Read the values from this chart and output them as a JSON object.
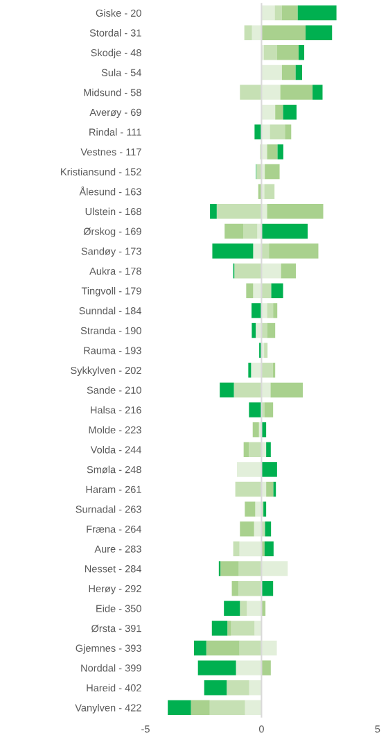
{
  "chart_data": {
    "type": "bar",
    "orientation": "horizontal",
    "stacked": true,
    "categories": [
      "Giske - 20",
      "Stordal - 31",
      "Skodje - 48",
      "Sula - 54",
      "Midsund - 58",
      "Averøy - 69",
      "Rindal - 111",
      "Vestnes - 117",
      "Kristiansund - 152",
      "Ålesund - 163",
      "Ulstein - 168",
      "Ørskog - 169",
      "Sandøy - 173",
      "Aukra - 178",
      "Tingvoll - 179",
      "Sunndal - 184",
      "Stranda - 190",
      "Rauma - 193",
      "Sykkylven - 202",
      "Sande - 210",
      "Halsa - 216",
      "Molde - 223",
      "Volda - 244",
      "Smøla - 248",
      "Haram - 261",
      "Surnadal - 263",
      "Fræna - 264",
      "Aure - 283",
      "Nesset - 284",
      "Herøy - 292",
      "Eide - 350",
      "Ørsta - 391",
      "Gjemnes - 393",
      "Norddal - 399",
      "Hareid - 402",
      "Vanylven - 422"
    ],
    "series": [
      {
        "color": "#e2efda",
        "values": [
          0.57,
          -0.41,
          0.1,
          0.88,
          0.81,
          0.59,
          0.36,
          0.24,
          0.14,
          0.12,
          0.24,
          -0.18,
          -0.36,
          0.84,
          -0.36,
          0.24,
          -0.25,
          0.11,
          -0.45,
          0.39,
          0,
          -0.11,
          0.2,
          -1.06,
          0.2,
          -0.27,
          -0.32,
          -0.95,
          1.13,
          null,
          -0.63,
          -0.3,
          0.66,
          -1.1,
          -0.53,
          -0.71
        ]
      },
      {
        "color": "#c6e0b4",
        "values": [
          0.3,
          -0.33,
          0.56,
          0,
          -0.93,
          null,
          0.65,
          -0.06,
          -0.22,
          0.44,
          -1.93,
          -0.61,
          0.32,
          -1.17,
          0.42,
          0.26,
          0.24,
          0.15,
          0.49,
          -1.19,
          0.12,
          null,
          -0.54,
          0,
          -1.13,
          0.08,
          0.15,
          -0.27,
          -0.98,
          -0.99,
          -0.3,
          -1.01,
          -0.95,
          0,
          -0.97,
          -1.52
        ]
      },
      {
        "color": "#a9d18e",
        "values": [
          0.69,
          1.9,
          0.94,
          0.59,
          1.39,
          0.34,
          0.27,
          0.45,
          0.64,
          -0.14,
          2.42,
          -0.8,
          2.13,
          0.64,
          -0.3,
          0.18,
          0.35,
          0,
          0.1,
          1.39,
          0.38,
          -0.27,
          -0.23,
          0,
          0.31,
          -0.45,
          -0.61,
          0.13,
          -0.79,
          -0.29,
          0.17,
          -0.16,
          -1.43,
          0.4,
          0,
          -0.81
        ]
      },
      {
        "color": "#00b050",
        "values": [
          1.67,
          1.14,
          0.24,
          0.28,
          0.43,
          0.58,
          -0.3,
          0.25,
          -0.02,
          0,
          -0.29,
          1.99,
          -1.76,
          -0.05,
          0.51,
          -0.43,
          -0.17,
          -0.1,
          -0.12,
          -0.61,
          -0.54,
          0.2,
          0.2,
          0.67,
          0.11,
          0.12,
          0.26,
          0.39,
          -0.07,
          0.5,
          -0.69,
          -0.67,
          -0.53,
          -1.64,
          -0.97,
          -1.0
        ]
      }
    ],
    "ref_lines": [
      {
        "axis": "x",
        "value": 0,
        "color": "#d9d9d9"
      }
    ],
    "xlim": [
      -5,
      5
    ],
    "xticks": [
      -5,
      0,
      5
    ],
    "grid": false,
    "legend": false
  }
}
